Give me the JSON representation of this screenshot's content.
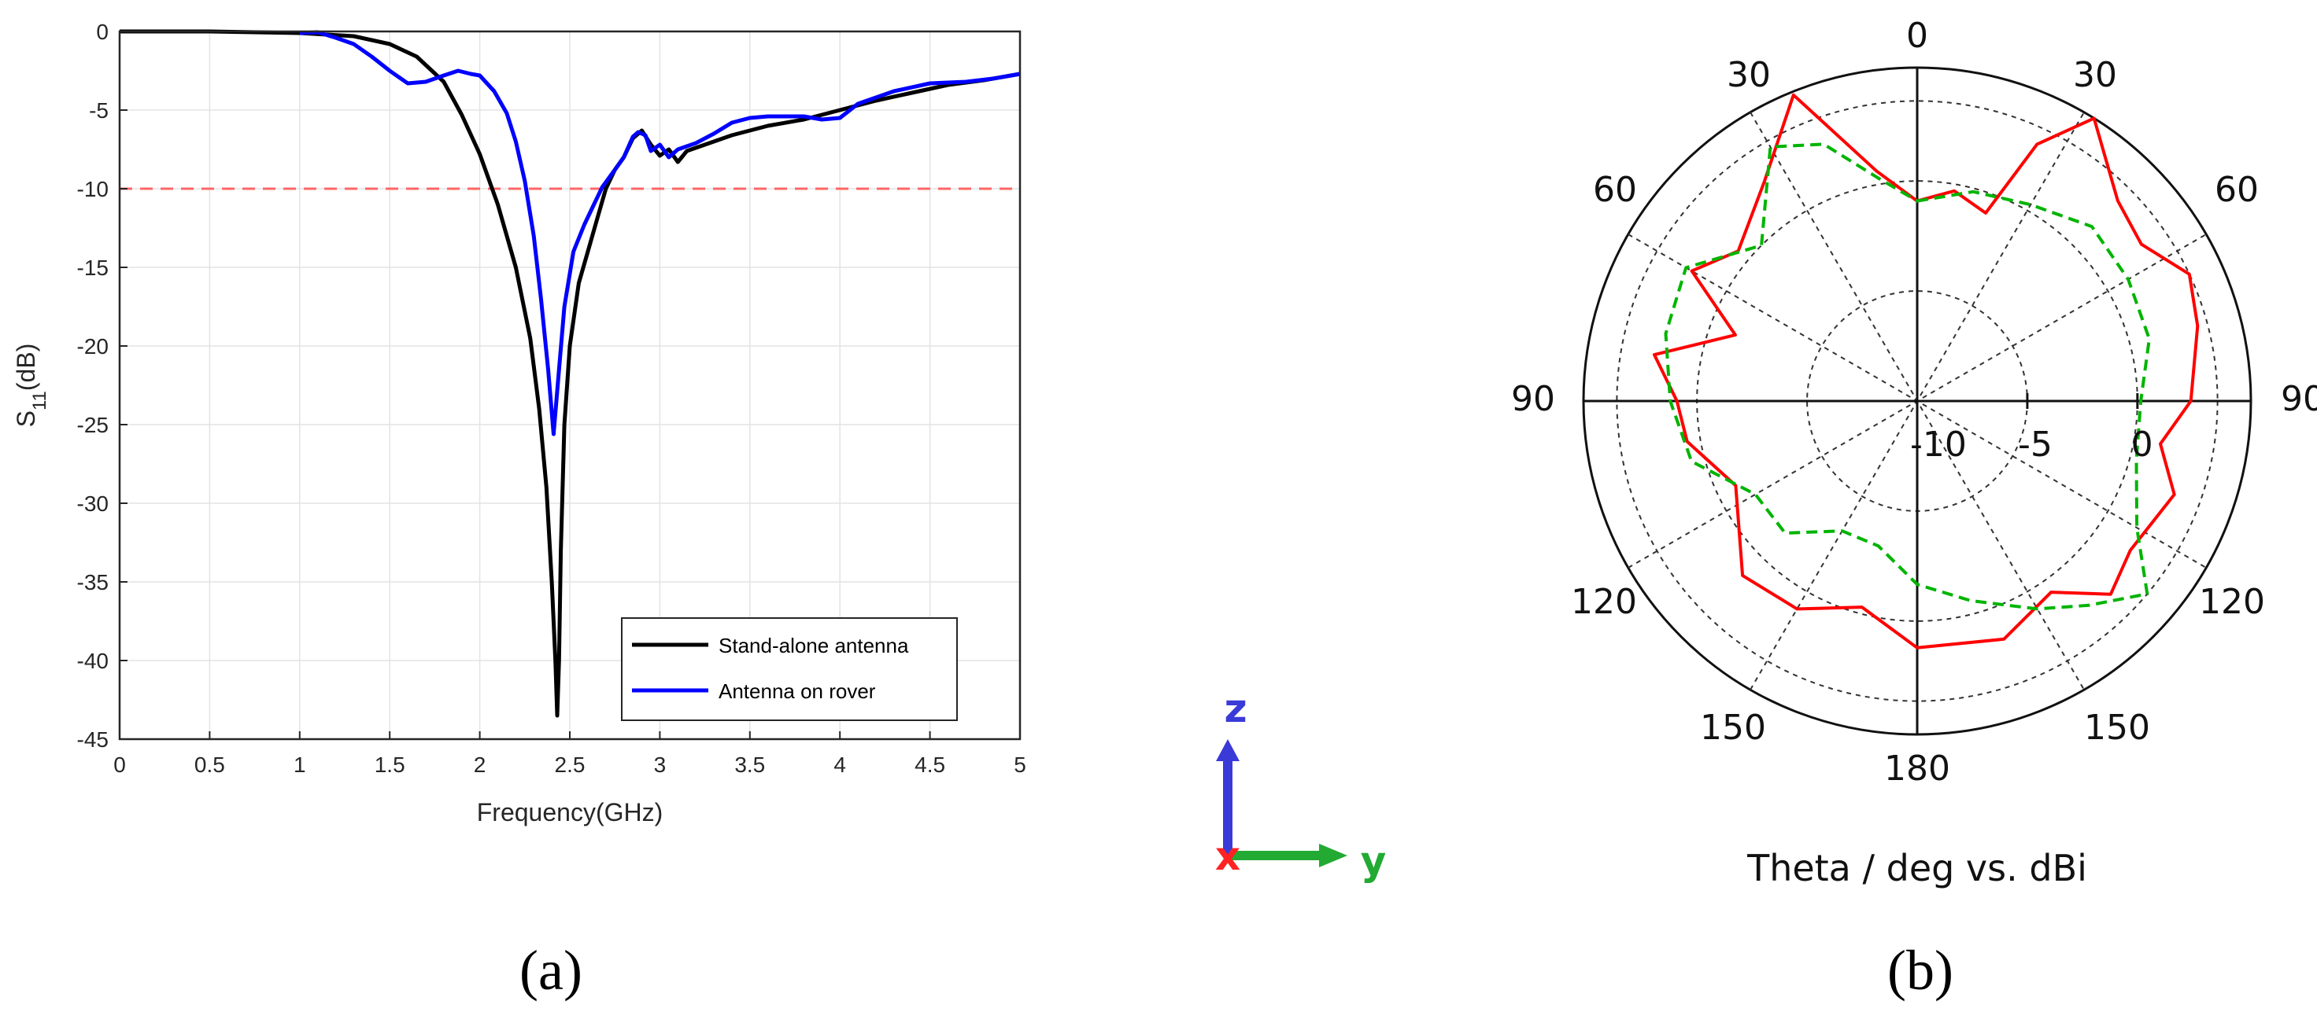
{
  "chart_data": [
    {
      "type": "line",
      "panel": "(a)",
      "xlabel": "Frequency(GHz)",
      "ylabel_main": "S",
      "ylabel_sub": "11",
      "ylabel_unit": "(dB)",
      "xlim": [
        0,
        5
      ],
      "ylim": [
        -45,
        0
      ],
      "xticks": [
        "0",
        "0.5",
        "1",
        "1.5",
        "2",
        "2.5",
        "3",
        "3.5",
        "4",
        "4.5",
        "5"
      ],
      "yticks": [
        "0",
        "-5",
        "-10",
        "-15",
        "-20",
        "-25",
        "-30",
        "-35",
        "-40",
        "-45"
      ],
      "grid": true,
      "legend_placement": "bottom-right",
      "reference_line": {
        "y": -10,
        "color": "#ff6666",
        "style": "dashed"
      },
      "series": [
        {
          "name": "Stand-alone antenna",
          "color": "#000000",
          "points": [
            [
              0,
              0
            ],
            [
              0.5,
              0
            ],
            [
              1,
              -0.1
            ],
            [
              1.3,
              -0.3
            ],
            [
              1.5,
              -0.8
            ],
            [
              1.65,
              -1.6
            ],
            [
              1.8,
              -3.2
            ],
            [
              1.9,
              -5.3
            ],
            [
              2.0,
              -7.8
            ],
            [
              2.1,
              -11
            ],
            [
              2.2,
              -15
            ],
            [
              2.28,
              -19.5
            ],
            [
              2.33,
              -24
            ],
            [
              2.37,
              -29
            ],
            [
              2.4,
              -35
            ],
            [
              2.42,
              -40
            ],
            [
              2.43,
              -43.5
            ],
            [
              2.44,
              -40
            ],
            [
              2.45,
              -33
            ],
            [
              2.47,
              -25
            ],
            [
              2.5,
              -20
            ],
            [
              2.55,
              -16
            ],
            [
              2.6,
              -14
            ],
            [
              2.65,
              -12
            ],
            [
              2.7,
              -10
            ],
            [
              2.75,
              -8.8
            ],
            [
              2.8,
              -8
            ],
            [
              2.85,
              -6.8
            ],
            [
              2.9,
              -6.3
            ],
            [
              2.95,
              -7.2
            ],
            [
              3.0,
              -7.9
            ],
            [
              3.05,
              -7.5
            ],
            [
              3.1,
              -8.3
            ],
            [
              3.15,
              -7.6
            ],
            [
              3.25,
              -7.2
            ],
            [
              3.4,
              -6.6
            ],
            [
              3.6,
              -6
            ],
            [
              3.8,
              -5.6
            ],
            [
              4.0,
              -5
            ],
            [
              4.2,
              -4.4
            ],
            [
              4.4,
              -3.9
            ],
            [
              4.6,
              -3.4
            ],
            [
              4.8,
              -3.1
            ],
            [
              5.0,
              -2.7
            ]
          ]
        },
        {
          "name": "Antenna on rover",
          "color": "#0000ff",
          "points": [
            [
              1.0,
              -0.1
            ],
            [
              1.1,
              -0.05
            ],
            [
              1.2,
              -0.4
            ],
            [
              1.3,
              -0.8
            ],
            [
              1.4,
              -1.6
            ],
            [
              1.5,
              -2.5
            ],
            [
              1.6,
              -3.3
            ],
            [
              1.7,
              -3.2
            ],
            [
              1.8,
              -2.8
            ],
            [
              1.88,
              -2.5
            ],
            [
              1.95,
              -2.7
            ],
            [
              2.0,
              -2.8
            ],
            [
              2.08,
              -3.8
            ],
            [
              2.15,
              -5.2
            ],
            [
              2.2,
              -7
            ],
            [
              2.25,
              -9.5
            ],
            [
              2.3,
              -13
            ],
            [
              2.34,
              -17
            ],
            [
              2.38,
              -21.5
            ],
            [
              2.41,
              -25.6
            ],
            [
              2.44,
              -21.5
            ],
            [
              2.47,
              -17.5
            ],
            [
              2.52,
              -14
            ],
            [
              2.58,
              -12.3
            ],
            [
              2.63,
              -11.1
            ],
            [
              2.68,
              -9.9
            ],
            [
              2.75,
              -8.8
            ],
            [
              2.8,
              -8
            ],
            [
              2.85,
              -6.7
            ],
            [
              2.88,
              -6.4
            ],
            [
              2.92,
              -6.6
            ],
            [
              2.95,
              -7.6
            ],
            [
              3.0,
              -7.2
            ],
            [
              3.05,
              -8
            ],
            [
              3.1,
              -7.5
            ],
            [
              3.2,
              -7.1
            ],
            [
              3.3,
              -6.5
            ],
            [
              3.4,
              -5.8
            ],
            [
              3.5,
              -5.5
            ],
            [
              3.6,
              -5.4
            ],
            [
              3.8,
              -5.4
            ],
            [
              3.9,
              -5.6
            ],
            [
              4.0,
              -5.5
            ],
            [
              4.1,
              -4.6
            ],
            [
              4.3,
              -3.8
            ],
            [
              4.5,
              -3.3
            ],
            [
              4.7,
              -3.2
            ],
            [
              4.85,
              -3.0
            ],
            [
              5.0,
              -2.7
            ]
          ]
        }
      ]
    },
    {
      "type": "polar",
      "panel": "(b)",
      "caption": "Theta / deg vs. dBi",
      "angle_labels": [
        "0",
        "30",
        "30",
        "60",
        "60",
        "90",
        "90",
        "120",
        "120",
        "150",
        "150",
        "180"
      ],
      "radial_labels": [
        "-10",
        "-5",
        "0"
      ],
      "series": [
        {
          "color": "#ff0000",
          "style": "solid",
          "points_deg_r": [
            [
              0,
              0.6
            ],
            [
              10,
              0.64
            ],
            [
              20,
              0.6
            ],
            [
              25,
              0.85
            ],
            [
              32,
              1.0
            ],
            [
              45,
              0.85
            ],
            [
              55,
              0.82
            ],
            [
              65,
              0.9
            ],
            [
              75,
              0.87
            ],
            [
              90,
              0.82
            ],
            [
              100,
              0.74
            ],
            [
              110,
              0.82
            ],
            [
              125,
              0.78
            ],
            [
              135,
              0.82
            ],
            [
              145,
              0.7
            ],
            [
              160,
              0.76
            ],
            [
              180,
              0.74
            ],
            [
              195,
              0.64
            ],
            [
              210,
              0.72
            ],
            [
              225,
              0.74
            ],
            [
              245,
              0.6
            ],
            [
              260,
              0.7
            ],
            [
              270,
              0.72
            ],
            [
              280,
              0.8
            ],
            [
              290,
              0.58
            ],
            [
              300,
              0.78
            ],
            [
              310,
              0.7
            ],
            [
              325,
              0.8
            ],
            [
              338,
              0.99
            ],
            [
              350,
              0.7
            ]
          ]
        },
        {
          "color": "#00b400",
          "style": "dashed",
          "points_deg_r": [
            [
              0,
              0.6
            ],
            [
              15,
              0.65
            ],
            [
              30,
              0.68
            ],
            [
              45,
              0.74
            ],
            [
              60,
              0.73
            ],
            [
              75,
              0.72
            ],
            [
              90,
              0.67
            ],
            [
              105,
              0.68
            ],
            [
              120,
              0.76
            ],
            [
              130,
              0.9
            ],
            [
              140,
              0.8
            ],
            [
              150,
              0.72
            ],
            [
              165,
              0.62
            ],
            [
              180,
              0.55
            ],
            [
              195,
              0.45
            ],
            [
              210,
              0.45
            ],
            [
              225,
              0.56
            ],
            [
              240,
              0.56
            ],
            [
              255,
              0.7
            ],
            [
              270,
              0.74
            ],
            [
              285,
              0.78
            ],
            [
              300,
              0.8
            ],
            [
              315,
              0.66
            ],
            [
              330,
              0.88
            ],
            [
              340,
              0.82
            ],
            [
              350,
              0.68
            ]
          ]
        }
      ]
    }
  ],
  "triad": {
    "z": "z",
    "y": "y",
    "x": "x"
  }
}
